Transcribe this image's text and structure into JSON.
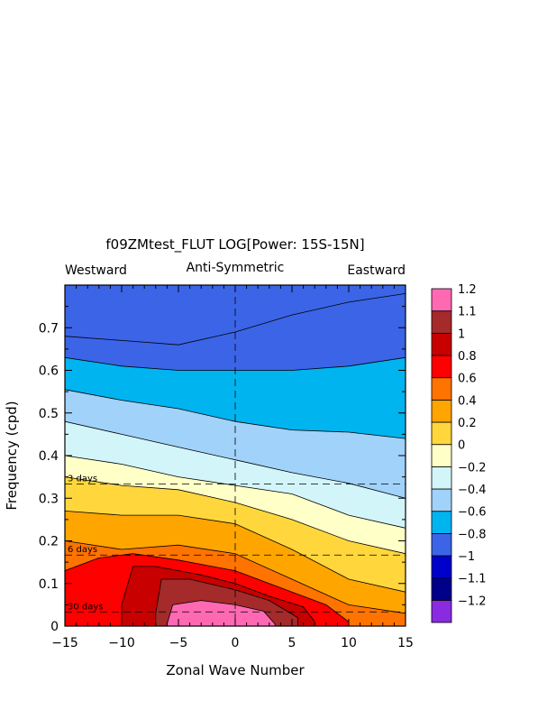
{
  "chart_data": {
    "type": "contour",
    "title": "f09ZMtest_FLUT LOG[Power: 15S-15N]",
    "subtitle": "Anti-Symmetric",
    "left_label": "Westward",
    "right_label": "Eastward",
    "xlabel": "Zonal Wave Number",
    "ylabel": "Frequency (cpd)",
    "xlim": [
      -15,
      15
    ],
    "ylim": [
      0,
      0.8
    ],
    "x_ticks": [
      -15,
      -10,
      -5,
      0,
      5,
      10,
      15
    ],
    "x_tick_labels": [
      "−15",
      "−10",
      "−5",
      "0",
      "5",
      "10",
      "15"
    ],
    "y_ticks": [
      0,
      0.1,
      0.2,
      0.3,
      0.4,
      0.5,
      0.6,
      0.7
    ],
    "y_tick_labels": [
      "0",
      "0.1",
      "0.2",
      "0.3",
      "0.4",
      "0.5",
      "0.6",
      "0.7"
    ],
    "period_lines": [
      {
        "label": "3 days",
        "frequency": 0.3333
      },
      {
        "label": "6 days",
        "frequency": 0.1667
      },
      {
        "label": "30 days",
        "frequency": 0.0333
      }
    ],
    "zero_wavenumber_line": 0,
    "levels": [
      -1.2,
      -1.1,
      -1,
      -0.8,
      -0.6,
      -0.4,
      -0.2,
      0,
      0.2,
      0.4,
      0.6,
      0.8,
      1,
      1.1,
      1.2
    ],
    "colorbar": {
      "colors": [
        "#8a2be2",
        "#00008b",
        "#0000cd",
        "#3c64e6",
        "#00b4f0",
        "#a0d2fa",
        "#d2f5fa",
        "#ffffc8",
        "#ffd73c",
        "#ffa500",
        "#ff7300",
        "#ff0000",
        "#c80000",
        "#a52a2a",
        "#ff69b4"
      ],
      "labels": [
        "−1.2",
        "−1.1",
        "−1",
        "−0.8",
        "−0.6",
        "−0.4",
        "−0.2",
        "0",
        "0.2",
        "0.4",
        "0.6",
        "0.8",
        "1",
        "1.1",
        "1.2"
      ]
    },
    "contour_bands": [
      {
        "level": -0.8,
        "boundary": [
          [
            -15,
            0.68
          ],
          [
            -10,
            0.67
          ],
          [
            -5,
            0.66
          ],
          [
            0,
            0.69
          ],
          [
            5,
            0.73
          ],
          [
            10,
            0.76
          ],
          [
            15,
            0.78
          ]
        ]
      },
      {
        "level": -0.6,
        "boundary": [
          [
            -15,
            0.63
          ],
          [
            -10,
            0.61
          ],
          [
            -5,
            0.6
          ],
          [
            0,
            0.6
          ],
          [
            5,
            0.6
          ],
          [
            10,
            0.61
          ],
          [
            15,
            0.63
          ]
        ]
      },
      {
        "level": -0.4,
        "boundary": [
          [
            -15,
            0.555
          ],
          [
            -10,
            0.53
          ],
          [
            -5,
            0.51
          ],
          [
            0,
            0.48
          ],
          [
            5,
            0.46
          ],
          [
            10,
            0.455
          ],
          [
            15,
            0.44
          ]
        ]
      },
      {
        "level": -0.2,
        "boundary": [
          [
            -15,
            0.48
          ],
          [
            -10,
            0.45
          ],
          [
            -5,
            0.42
          ],
          [
            0,
            0.39
          ],
          [
            5,
            0.36
          ],
          [
            10,
            0.335
          ],
          [
            15,
            0.3
          ]
        ]
      },
      {
        "level": 0,
        "boundary": [
          [
            -15,
            0.4
          ],
          [
            -10,
            0.38
          ],
          [
            -5,
            0.35
          ],
          [
            0,
            0.33
          ],
          [
            5,
            0.31
          ],
          [
            10,
            0.26
          ],
          [
            15,
            0.23
          ]
        ]
      },
      {
        "level": 0.2,
        "boundary": [
          [
            -15,
            0.35
          ],
          [
            -10,
            0.33
          ],
          [
            -5,
            0.32
          ],
          [
            0,
            0.29
          ],
          [
            5,
            0.25
          ],
          [
            10,
            0.2
          ],
          [
            15,
            0.17
          ]
        ]
      },
      {
        "level": 0.4,
        "boundary": [
          [
            -15,
            0.27
          ],
          [
            -10,
            0.26
          ],
          [
            -5,
            0.26
          ],
          [
            0,
            0.24
          ],
          [
            5,
            0.18
          ],
          [
            10,
            0.11
          ],
          [
            15,
            0.08
          ]
        ]
      },
      {
        "level": 0.6,
        "boundary": [
          [
            -15,
            0.2
          ],
          [
            -10,
            0.18
          ],
          [
            -5,
            0.19
          ],
          [
            0,
            0.17
          ],
          [
            5,
            0.11
          ],
          [
            10,
            0.05
          ],
          [
            15,
            0.03
          ]
        ]
      },
      {
        "level": 0.8,
        "boundary": [
          [
            -15,
            0.13
          ],
          [
            -12,
            0.16
          ],
          [
            -9,
            0.17
          ],
          [
            -5,
            0.155
          ],
          [
            0,
            0.13
          ],
          [
            5,
            0.08
          ],
          [
            8,
            0.05
          ],
          [
            10,
            0.01
          ]
        ]
      },
      {
        "level": 1,
        "boundary": [
          [
            -10,
            0.05
          ],
          [
            -9,
            0.14
          ],
          [
            -7,
            0.14
          ],
          [
            -3,
            0.12
          ],
          [
            0,
            0.1
          ],
          [
            3,
            0.07
          ],
          [
            6,
            0.045
          ],
          [
            7,
            0.01
          ]
        ]
      },
      {
        "level": 1.1,
        "boundary": [
          [
            -7,
            0.03
          ],
          [
            -6.5,
            0.11
          ],
          [
            -4,
            0.11
          ],
          [
            0,
            0.085
          ],
          [
            3,
            0.06
          ],
          [
            5.5,
            0.02
          ],
          [
            5.5,
            0.01
          ]
        ]
      },
      {
        "level": 1.2,
        "boundary": [
          [
            -6,
            0.005
          ],
          [
            -5.5,
            0.05
          ],
          [
            -3,
            0.06
          ],
          [
            0,
            0.05
          ],
          [
            2.5,
            0.035
          ],
          [
            3.5,
            0.005
          ]
        ]
      }
    ]
  }
}
